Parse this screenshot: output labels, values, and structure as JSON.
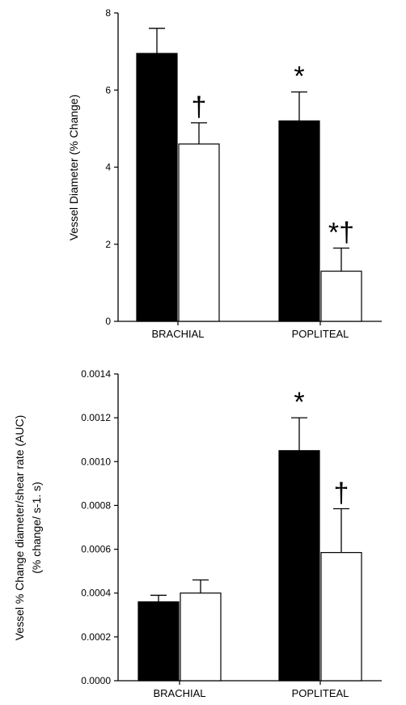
{
  "chart_data": [
    {
      "type": "bar",
      "title": "",
      "xlabel": "",
      "ylabel": "Vessel Diameter (% Change)",
      "ylabel_line2": "",
      "categories": [
        "BRACHIAL",
        "POPLITEAL"
      ],
      "ylim": [
        0,
        8
      ],
      "yticks": [
        0,
        2,
        4,
        6,
        8
      ],
      "grid": false,
      "legend": "none",
      "series": [
        {
          "color": "#000000",
          "values": [
            6.95,
            5.2
          ],
          "errors": [
            0.65,
            0.75
          ]
        },
        {
          "color": "#ffffff",
          "values": [
            4.6,
            1.3
          ],
          "errors": [
            0.55,
            0.6
          ]
        }
      ],
      "annotations": [
        {
          "category": 0,
          "series": 1,
          "text": "†"
        },
        {
          "category": 1,
          "series": 0,
          "text": "*"
        },
        {
          "category": 1,
          "series": 1,
          "text": "*†"
        }
      ]
    },
    {
      "type": "bar",
      "title": "",
      "xlabel": "",
      "ylabel": "Vessel % Change diameter/shear rate (AUC)",
      "ylabel_line2": "(% change/ s-1. s)",
      "categories": [
        "BRACHIAL",
        "POPLITEAL"
      ],
      "ylim": [
        0,
        0.0014
      ],
      "yticks": [
        "0.0000",
        "0.0002",
        "0.0004",
        "0.0006",
        "0.0008",
        "0.0010",
        "0.0012",
        "0.0014"
      ],
      "grid": false,
      "legend": "none",
      "series": [
        {
          "color": "#000000",
          "values": [
            0.00036,
            0.00105
          ],
          "errors": [
            3e-05,
            0.00015
          ]
        },
        {
          "color": "#ffffff",
          "values": [
            0.0004,
            0.000585
          ],
          "errors": [
            6e-05,
            0.0002
          ]
        }
      ],
      "annotations": [
        {
          "category": 1,
          "series": 0,
          "text": "*"
        },
        {
          "category": 1,
          "series": 1,
          "text": "†"
        }
      ]
    }
  ]
}
